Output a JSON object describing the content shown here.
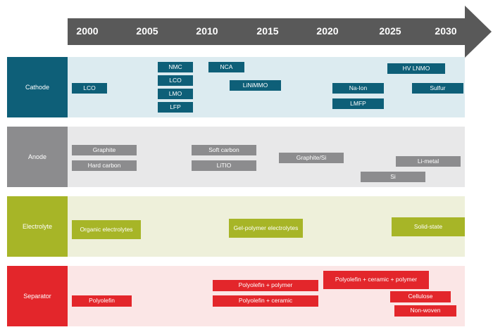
{
  "timeline": {
    "years": [
      "2000",
      "2005",
      "2010",
      "2015",
      "2020",
      "2025",
      "2030"
    ]
  },
  "rows": {
    "cathode": {
      "label": "Cathode",
      "items": [
        "LCO",
        "NMC",
        "LCO",
        "LMO",
        "LFP",
        "NCA",
        "LiNiMMO",
        "Na-Ion",
        "LMFP",
        "HV LNMO",
        "Sulfur"
      ]
    },
    "anode": {
      "label": "Anode",
      "items": [
        "Graphite",
        "Hard carbon",
        "Soft carbon",
        "LiTIO",
        "Graphite/Si",
        "Si",
        "Li-metal"
      ]
    },
    "electrolyte": {
      "label": "Electrolyte",
      "items": [
        "Organic electrolytes",
        "Gel-polymer electrolytes",
        "Solid-state"
      ]
    },
    "separator": {
      "label": "Separator",
      "items": [
        "Polyolefin",
        "Polyolefin + polymer",
        "Polyolefin + ceramic",
        "Polyolefin + ceramic + polymer",
        "Cellulose",
        "Non-woven"
      ]
    }
  },
  "colors": {
    "arrow": "#595959",
    "cathode_dark": "#0e5f78",
    "cathode_light": "#dcebf0",
    "anode_dark": "#8c8c8e",
    "anode_light": "#e8e8e9",
    "electrolyte_dark": "#a7b527",
    "electrolyte_light": "#eef0da",
    "separator_dark": "#e3262b",
    "separator_light": "#fbe6e6"
  }
}
